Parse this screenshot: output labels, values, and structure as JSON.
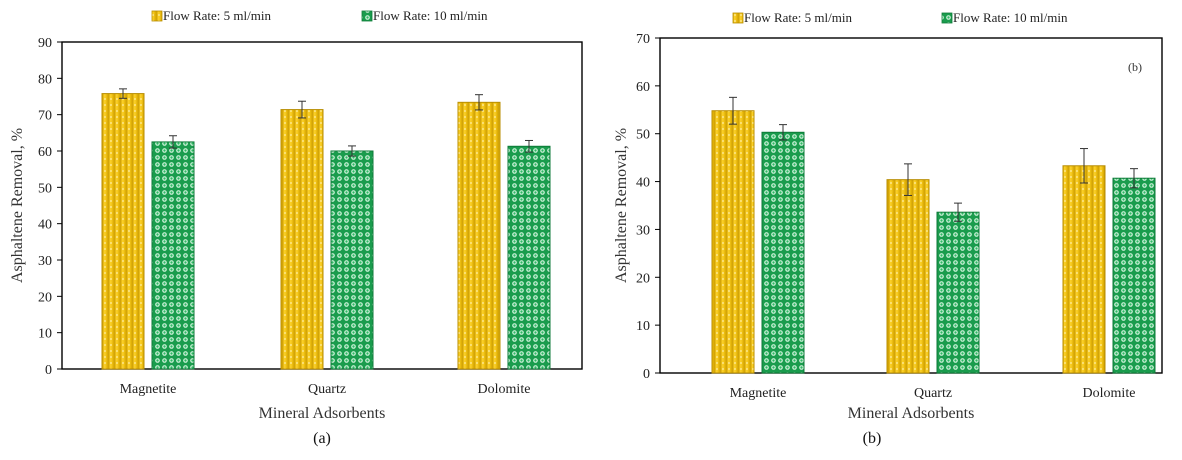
{
  "chart_data": [
    {
      "type": "bar",
      "panel_label": "(a)",
      "categories": [
        "Magnetite",
        "Quartz",
        "Dolomite"
      ],
      "series": [
        {
          "name": "Flow Rate: 5 ml/min",
          "values": [
            75.8,
            71.4,
            73.4
          ],
          "errors": [
            1.3,
            2.3,
            2.1
          ],
          "color": "#f2c200"
        },
        {
          "name": "Flow Rate: 10 ml/min",
          "values": [
            62.5,
            60.0,
            61.3
          ],
          "errors": [
            1.7,
            1.4,
            1.6
          ],
          "color": "#1fa855"
        }
      ],
      "xlabel": "Mineral Adsorbents",
      "ylabel": "Asphaltene Removal, %",
      "ylim": [
        0,
        90
      ],
      "yticks": [
        "0",
        "10",
        "20",
        "30",
        "40",
        "50",
        "60",
        "70",
        "80",
        "90"
      ],
      "legend_position": "top",
      "grid": false
    },
    {
      "type": "bar",
      "panel_label": "(b)",
      "inset_label": "(b)",
      "categories": [
        "Magnetite",
        "Quartz",
        "Dolomite"
      ],
      "series": [
        {
          "name": "Flow Rate: 5 ml/min",
          "values": [
            54.8,
            40.4,
            43.3
          ],
          "errors": [
            2.8,
            3.3,
            3.6
          ],
          "color": "#f2c200"
        },
        {
          "name": "Flow Rate: 10 ml/min",
          "values": [
            50.3,
            33.6,
            40.7
          ],
          "errors": [
            1.6,
            1.9,
            2.0
          ],
          "color": "#1fa855"
        }
      ],
      "xlabel": "Mineral Adsorbents",
      "ylabel": "Asphaltene Removal, %",
      "ylim": [
        0,
        70
      ],
      "yticks": [
        "0",
        "10",
        "20",
        "30",
        "40",
        "50",
        "60",
        "70"
      ],
      "legend_position": "top",
      "grid": false
    }
  ]
}
